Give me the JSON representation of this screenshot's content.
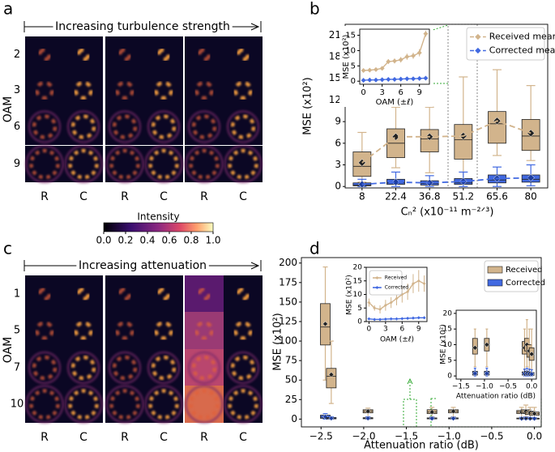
{
  "labels": [
    "a",
    "b",
    "c",
    "d"
  ],
  "image_grids": [
    {
      "title": "Increasing turbulence strength",
      "row_label": "OAM",
      "rows": [
        "2",
        "3",
        "6",
        "9"
      ],
      "columns": [
        "R",
        "C",
        "R",
        "C",
        "R",
        "C"
      ]
    },
    {
      "title": "Increasing attenuation",
      "row_label": "OAM",
      "rows": [
        "1",
        "5",
        "7",
        "10"
      ],
      "columns": [
        "R",
        "C",
        "R",
        "C",
        "R",
        "C"
      ]
    }
  ],
  "colorbar": {
    "title": "Intensity",
    "ticks": [
      {
        "value": 0,
        "label": "0.0"
      },
      0.2,
      0.4,
      0.6,
      0.8,
      {
        "value": 1,
        "label": "1.0"
      }
    ]
  },
  "chart_data": [
    {
      "type": "box",
      "categories": [
        "8",
        "22.4",
        "36.8",
        "51.2",
        "65.6",
        "80"
      ],
      "xlabel": "Cₙ² (x10⁻¹¹ m⁻²ᐟ³)",
      "ylabel": "MSE (x10²)",
      "ylim": [
        -0.2,
        22.5
      ],
      "yticks": [
        0,
        3,
        6,
        9,
        12,
        15,
        18,
        21
      ],
      "legend": "upper right",
      "series": [
        {
          "name": "Received mean",
          "color": "#d2b48c",
          "linestyle": "dashed",
          "mean": [
            3.3,
            6.9,
            6.9,
            7.0,
            9.1,
            7.4
          ],
          "q1": [
            1.4,
            4.0,
            4.8,
            3.8,
            6.0,
            5.0
          ],
          "median": [
            2.8,
            6.0,
            6.6,
            6.5,
            8.7,
            7.0
          ],
          "q3": [
            4.8,
            8.0,
            7.9,
            8.6,
            10.4,
            9.3
          ],
          "whislo": [
            0.6,
            2.6,
            1.9,
            0.5,
            4.3,
            3.6
          ],
          "whishi": [
            7.5,
            11.0,
            11.0,
            15.2,
            16.2,
            14.0
          ]
        },
        {
          "name": "Corrected mean",
          "color": "#4169e1",
          "linestyle": "dashed",
          "mean": [
            0.3,
            0.6,
            0.5,
            0.7,
            1.1,
            1.2
          ],
          "q1": [
            0.1,
            0.3,
            0.2,
            0.3,
            0.5,
            0.6
          ],
          "median": [
            0.2,
            0.5,
            0.4,
            0.5,
            0.9,
            1.0
          ],
          "q3": [
            0.5,
            1.0,
            0.8,
            1.1,
            1.6,
            1.6
          ],
          "whislo": [
            0,
            0,
            0,
            0,
            0,
            0.1
          ],
          "whishi": [
            1.0,
            2.0,
            1.5,
            2.0,
            2.7,
            3.0
          ]
        }
      ]
    },
    {
      "type": "line",
      "x": [
        0,
        1,
        2,
        3,
        4,
        5,
        6,
        7,
        8,
        9,
        10
      ],
      "xlabel": "OAM (±ℓ)",
      "ylabel": "MSE (x10²)",
      "xlim": [
        -0.6,
        10.6
      ],
      "ylim": [
        -1,
        17
      ],
      "xticks": [
        0,
        3,
        6,
        9
      ],
      "yticks": [
        0,
        5,
        10,
        15
      ],
      "series": [
        {
          "color": "#d2b48c",
          "values": [
            3.5,
            3.6,
            3.8,
            4.2,
            6.4,
            6.6,
            7.0,
            8.0,
            8.3,
            9.3,
            15.5
          ],
          "errors": [
            0.5,
            0.5,
            0.6,
            0.6,
            0.8,
            0.8,
            0.9,
            1.0,
            1.0,
            1.2,
            1.0
          ]
        },
        {
          "color": "#4169e1",
          "values": [
            0.3,
            0.4,
            0.4,
            0.5,
            0.6,
            0.6,
            0.7,
            0.8,
            0.8,
            0.9,
            1.0
          ],
          "errors": [
            0.3,
            0.3,
            0.3,
            0.4,
            0.4,
            0.4,
            0.5,
            0.5,
            0.5,
            0.6,
            0.6
          ]
        }
      ]
    },
    {
      "type": "box",
      "x": [
        -2.45,
        -2.38,
        -1.95,
        -1.2,
        -0.95,
        -0.15,
        -0.1,
        -0.05,
        0.0
      ],
      "xlabel": "Attenuation ratio (dB)",
      "ylabel": "MSE (x10²)",
      "xlim": [
        -2.73,
        0.08
      ],
      "ylim": [
        -10,
        207
      ],
      "xticks": [
        {
          "value": -2.5,
          "label": "−2.5"
        },
        {
          "value": -2,
          "label": "−2.0"
        },
        {
          "value": -1.5,
          "label": "−1.5"
        },
        {
          "value": -1,
          "label": "−1.0"
        },
        {
          "value": -0.5,
          "label": "−0.5"
        },
        {
          "value": 0,
          "label": "0.0"
        }
      ],
      "yticks": [
        0,
        25,
        50,
        75,
        100,
        125,
        150,
        175,
        200
      ],
      "legend": "upper right",
      "series": [
        {
          "name": "Received",
          "color": "#d2b48c",
          "mean": [
            122,
            57,
            10,
            9,
            10,
            9,
            10,
            8,
            7
          ],
          "q1": [
            95,
            40,
            8,
            7,
            8,
            7,
            8,
            6,
            5
          ],
          "median": [
            118,
            55,
            10,
            9,
            10,
            9,
            10,
            8,
            7
          ],
          "q3": [
            148,
            65,
            12,
            12,
            12,
            11,
            12,
            10,
            9
          ],
          "whislo": [
            50,
            20,
            3,
            3,
            3,
            2,
            3,
            2,
            2
          ],
          "whishi": [
            195,
            100,
            14,
            15,
            15,
            15,
            18,
            15,
            15
          ]
        },
        {
          "name": "Corrected",
          "color": "#4169e1",
          "mean": [
            3,
            1,
            1,
            0.8,
            0.8,
            0.7,
            0.8,
            0.7,
            0.6
          ],
          "q1": [
            1,
            0.3,
            0.4,
            0.3,
            0.3,
            0.3,
            0.3,
            0.3,
            0.2
          ],
          "median": [
            2.5,
            0.8,
            0.9,
            0.7,
            0.7,
            0.6,
            0.7,
            0.6,
            0.5
          ],
          "q3": [
            5,
            2,
            1.8,
            1.5,
            1.5,
            1.3,
            1.5,
            1.3,
            1.1
          ],
          "whislo": [
            0,
            0,
            0,
            0,
            0,
            0,
            0,
            0,
            0
          ],
          "whishi": [
            7,
            3,
            3,
            2.5,
            2.5,
            2.2,
            2.5,
            2.2,
            2
          ]
        }
      ]
    },
    {
      "type": "line",
      "x": [
        0,
        1,
        2,
        3,
        4,
        5,
        6,
        7,
        8,
        9,
        10
      ],
      "xlabel": "OAM (±ℓ)",
      "ylabel": "MSE (x10²)",
      "xlim": [
        -0.5,
        10.5
      ],
      "ylim": [
        0,
        20
      ],
      "xticks": [
        0,
        3,
        6,
        9
      ],
      "yticks": [
        0,
        5,
        10,
        15,
        20
      ],
      "legend": "upper left",
      "series": [
        {
          "name": "Received",
          "color": "#d2b48c",
          "values": [
            7,
            5,
            4.5,
            6,
            7,
            8.5,
            10,
            11,
            14,
            15,
            14
          ],
          "errors": [
            1.5,
            1,
            1.5,
            2,
            2,
            2.5,
            3,
            3,
            3.5,
            4,
            3
          ]
        },
        {
          "name": "Corrected",
          "color": "#4169e1",
          "values": [
            1,
            0.8,
            0.8,
            0.9,
            1,
            1,
            1.1,
            1.2,
            1.3,
            1.4,
            1.4
          ],
          "errors": [
            0.4,
            0.3,
            0.3,
            0.3,
            0.4,
            0.4,
            0.4,
            0.5,
            0.5,
            0.5,
            0.5
          ]
        }
      ]
    },
    {
      "type": "zoom",
      "xlabel": "Attenuation ratio (dB)",
      "ylabel": "MSE (x10²)",
      "xlim": [
        -1.6,
        0.1
      ],
      "ylim": [
        -1,
        21
      ],
      "xticks": [
        {
          "value": -1.5,
          "label": "−1.5"
        },
        {
          "value": -1,
          "label": "−1.0"
        },
        {
          "value": -0.5,
          "label": "−0.5"
        },
        {
          "value": 0,
          "label": "0.0"
        }
      ],
      "yticks": [
        0,
        5,
        10,
        15,
        20
      ]
    }
  ]
}
